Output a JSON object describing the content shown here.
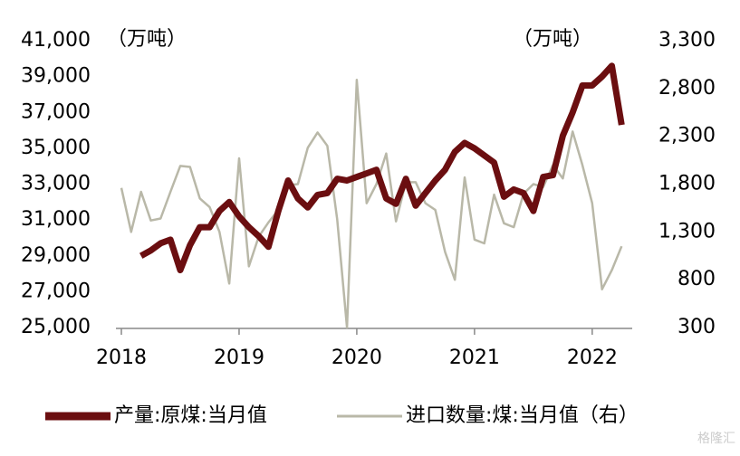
{
  "chart_data": {
    "type": "line",
    "y_unit_label": "（万吨）",
    "y2_unit_label": "（万吨）",
    "categories": [
      "2018",
      null,
      null,
      null,
      null,
      null,
      null,
      null,
      null,
      null,
      null,
      null,
      "2019",
      null,
      null,
      null,
      null,
      null,
      null,
      null,
      null,
      null,
      null,
      null,
      "2020",
      null,
      null,
      null,
      null,
      null,
      null,
      null,
      null,
      null,
      null,
      null,
      "2021",
      null,
      null,
      null,
      null,
      null,
      null,
      null,
      null,
      null,
      null,
      null,
      "2022",
      null,
      null,
      null
    ],
    "series": [
      {
        "name": "产量:原煤:当月值",
        "color": "#6b0e10",
        "axis": "y",
        "values": [
          null,
          null,
          29000,
          29300,
          29700,
          29900,
          28200,
          29600,
          30600,
          30600,
          31500,
          32000,
          31200,
          30600,
          30100,
          29500,
          31500,
          33200,
          32200,
          31700,
          32400,
          32500,
          33300,
          33200,
          33400,
          33600,
          33800,
          32200,
          31900,
          33300,
          31800,
          32500,
          33200,
          33800,
          34800,
          35300,
          35000,
          34600,
          34200,
          32300,
          32700,
          32500,
          31500,
          33400,
          33500,
          35700,
          37000,
          38500,
          38500,
          39000,
          39600,
          36300
        ]
      },
      {
        "name": "进口数量:煤:当月值（右）",
        "color": "#b9b8a8",
        "axis": "y2",
        "values": [
          1760,
          1300,
          1720,
          1420,
          1440,
          1720,
          1990,
          1980,
          1650,
          1560,
          1300,
          760,
          2070,
          940,
          1250,
          1400,
          1530,
          1790,
          1800,
          2180,
          2340,
          2200,
          1430,
          300,
          2890,
          1600,
          1800,
          2120,
          1410,
          1820,
          1820,
          1600,
          1530,
          1090,
          800,
          1870,
          1220,
          1180,
          1690,
          1390,
          1350,
          1700,
          1800,
          1770,
          2000,
          1860,
          2350,
          2000,
          1600,
          700,
          900,
          1150
        ]
      }
    ],
    "ylim": [
      25000,
      41000
    ],
    "yticks": [
      {
        "value": 25000,
        "label": "25,000"
      },
      {
        "value": 27000,
        "label": "27,000"
      },
      {
        "value": 29000,
        "label": "29,000"
      },
      {
        "value": 31000,
        "label": "31,000"
      },
      {
        "value": 33000,
        "label": "33,000"
      },
      {
        "value": 35000,
        "label": "35,000"
      },
      {
        "value": 37000,
        "label": "37,000"
      },
      {
        "value": 39000,
        "label": "39,000"
      },
      {
        "value": 41000,
        "label": "41,000"
      }
    ],
    "y2lim": [
      300,
      3300
    ],
    "y2ticks": [
      300,
      800,
      {
        "value": 1300,
        "label": "1,300"
      },
      {
        "value": 1800,
        "label": "1,800"
      },
      {
        "value": 2300,
        "label": "2,300"
      },
      {
        "value": 2800,
        "label": "2,800"
      },
      {
        "value": 3300,
        "label": "3,300"
      }
    ],
    "legend": "bottom",
    "watermark": "格隆汇"
  }
}
